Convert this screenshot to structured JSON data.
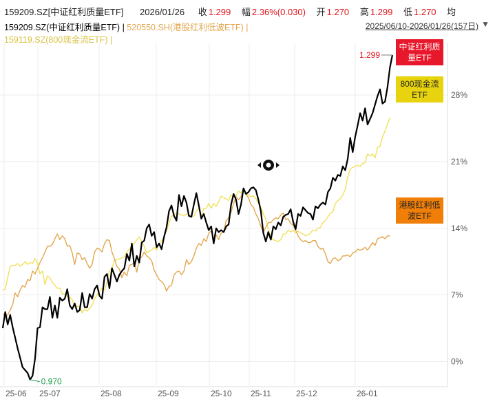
{
  "header": {
    "code_name": "159209.SZ[中证红利质量ETF]",
    "date": "2026/01/26",
    "close_label": "收",
    "close": "1.299",
    "change_label": "幅",
    "change": "2.36%(0.030)",
    "open_label": "开",
    "open": "1.270",
    "high_label": "高",
    "high": "1.299",
    "low_label": "低",
    "low": "1.270",
    "avg_label": "均",
    "series_1_label": "159209.SZ(中证红利质量ETF) |",
    "series_2_label": "520550.SH(港股红利低波ETF) |",
    "series_3_label": "159119.SZ(800现金流ETF) |",
    "range": "2025/06/10-2026/01/26(157日)",
    "range_icon": "chevron-down-icon"
  },
  "colors": {
    "series_1": "#000000",
    "series_2": "#e3a64e",
    "series_3": "#f2e05a",
    "tag_series_1": "#e8182c",
    "tag_series_2": "#f07f0a",
    "tag_series_3": "#e8d40e",
    "axis_text": "#555555",
    "grid": "#ececec"
  },
  "chart_data": {
    "type": "line",
    "x_ticks": [
      "25-06",
      "25-07",
      "25-08",
      "25-09",
      "25-10",
      "25-11",
      "25-12",
      "26-01"
    ],
    "ylabel_ticks": [
      "0%",
      "7%",
      "14%",
      "21%",
      "28%"
    ],
    "ylim": [
      -2.5,
      33.5
    ],
    "y_axis_position": "right",
    "grid": true,
    "min_label": "0.970",
    "max_label": "1.299",
    "series": [
      {
        "name": "中证红利质量ETF",
        "values": [
          3.5,
          5.2,
          3.9,
          4.9,
          3.6,
          2.5,
          1.4,
          0.4,
          -0.6,
          -0.9,
          -1.2,
          -1.9,
          -1.5,
          0.3,
          3.5,
          3.6,
          5.7,
          5.5,
          5.5,
          6.8,
          4.6,
          5.9,
          4.6,
          6.7,
          6.4,
          6.6,
          7.6,
          5.9,
          5.5,
          6.1,
          5.2,
          5.4,
          7.2,
          5.7,
          5.7,
          7.1,
          6.6,
          7.6,
          8.0,
          6.9,
          6.6,
          8.9,
          9.2,
          7.7,
          9.8,
          9.1,
          8.4,
          9.1,
          9.5,
          9.8,
          11.3,
          10.6,
          12.4,
          10.0,
          11.1,
          10.4,
          12.5,
          12.7,
          14.0,
          14.4,
          13.2,
          13.6,
          12.0,
          12.4,
          11.8,
          13.1,
          14.1,
          15.8,
          16.4,
          15.3,
          14.8,
          17.5,
          16.3,
          17.4,
          16.7,
          15.3,
          15.2,
          16.5,
          17.7,
          16.4,
          15.0,
          15.5,
          14.6,
          13.8,
          14.2,
          12.4,
          14.0,
          13.6,
          13.8,
          13.6,
          14.2,
          14.4,
          16.5,
          17.6,
          17.0,
          15.5,
          16.5,
          18.2,
          17.6,
          17.8,
          18.2,
          18.3,
          18.0,
          17.0,
          15.8,
          13.5,
          12.6,
          13.6,
          12.8,
          14.2,
          13.9,
          14.6,
          14.3,
          15.2,
          15.4,
          15.5,
          16.0,
          14.7,
          13.9,
          15.5,
          15.3,
          16.2,
          15.9,
          15.6,
          15.5,
          14.9,
          16.3,
          16.1,
          16.5,
          16.7,
          16.5,
          17.8,
          18.2,
          19.3,
          19.0,
          19.6,
          19.5,
          20.5,
          20.1,
          21.3,
          23.5,
          22.0,
          23.6,
          24.8,
          26.1,
          25.3,
          26.6,
          24.9,
          25.5,
          26.1,
          27.0,
          27.9,
          28.6,
          27.1,
          27.3,
          28.8,
          30.9,
          32.2
        ]
      },
      {
        "name": "港股红利低波ETF",
        "values": [
          5.0,
          4.8,
          4.9,
          5.4,
          6.0,
          7.2,
          6.8,
          7.5,
          8.0,
          7.8,
          8.6,
          8.5,
          9.5,
          9.2,
          9.8,
          10.4,
          10.9,
          11.5,
          12.1,
          12.1,
          12.3,
          12.9,
          13.4,
          12.8,
          13.2,
          12.9,
          12.1,
          12.2,
          11.4,
          10.2,
          11.4,
          11.3,
          10.7,
          10.9,
          10.3,
          9.8,
          10.2,
          11.5,
          11.9,
          11.8,
          11.5,
          12.4,
          12.8,
          12.7,
          11.5,
          10.8,
          10.0,
          9.7,
          8.8,
          9.4,
          9.0,
          10.1,
          10.2,
          10.4,
          9.4,
          10.8,
          11.0,
          11.5,
          11.1,
          10.9,
          10.6,
          9.6,
          9.1,
          8.6,
          8.4,
          8.1,
          7.4,
          7.9,
          8.0,
          9.1,
          9.4,
          9.5,
          9.1,
          9.5,
          10.7,
          10.2,
          10.5,
          11.1,
          11.9,
          12.4,
          12.2,
          12.9,
          12.6,
          13.5,
          13.7,
          12.9,
          13.3,
          12.8,
          13.5,
          13.6,
          14.8,
          15.1,
          15.7,
          16.6,
          17.3,
          17.0,
          17.3,
          18.0,
          17.6,
          17.2,
          16.5,
          16.2,
          15.5,
          15.0,
          14.2,
          13.6,
          14.1,
          14.6,
          14.6,
          14.9,
          15.1,
          15.0,
          15.4,
          15.6,
          14.9,
          15.0,
          14.5,
          14.3,
          13.8,
          13.2,
          12.8,
          12.6,
          12.7,
          12.5,
          12.5,
          12.7,
          12.7,
          12.1,
          11.8,
          11.9,
          11.3,
          10.5,
          10.3,
          10.8,
          10.9,
          10.6,
          10.7,
          11.1,
          11.1,
          11.2,
          11.0,
          11.4,
          11.5,
          11.8,
          11.7,
          11.8,
          12.0,
          11.7,
          12.1,
          12.5,
          12.2,
          12.9,
          13.0,
          13.1,
          12.9,
          13.2,
          13.2
        ]
      },
      {
        "name": "800现金流ETF",
        "values": [
          7.5,
          7.6,
          8.8,
          10.0,
          10.1,
          10.1,
          10.3,
          10.0,
          10.2,
          10.5,
          10.2,
          10.4,
          10.3,
          10.8,
          10.3,
          9.2,
          9.5,
          8.1,
          9.0,
          8.8,
          8.3,
          8.0,
          7.7,
          7.7,
          7.1,
          7.1,
          6.8,
          6.8,
          6.5,
          5.8,
          5.8,
          5.8,
          5.1,
          5.5,
          5.3,
          5.6,
          5.9,
          6.6,
          7.0,
          7.4,
          7.7,
          7.5,
          8.3,
          9.5,
          9.8,
          10.6,
          10.7,
          10.8,
          10.9,
          11.0,
          11.5,
          11.8,
          12.1,
          12.4,
          12.8,
          13.1,
          12.6,
          12.1,
          11.4,
          11.6,
          11.7,
          12.0,
          11.7,
          12.4,
          12.7,
          13.1,
          13.7,
          14.6,
          15.2,
          15.5,
          15.6,
          15.5,
          15.4,
          15.3,
          15.5,
          15.4,
          15.2,
          15.3,
          15.8,
          16.1,
          15.2,
          16.1,
          16.1,
          16.6,
          16.1,
          16.6,
          16.3,
          16.8,
          17.4,
          17.2,
          17.1,
          16.9,
          17.5,
          17.4,
          17.4,
          17.9,
          17.7,
          18.1,
          17.6,
          17.5,
          17.3,
          17.4,
          17.1,
          16.6,
          16.2,
          15.5,
          15.0,
          13.9,
          13.1,
          12.8,
          12.7,
          12.6,
          12.8,
          13.4,
          13.4,
          13.8,
          13.6,
          13.8,
          13.5,
          13.7,
          13.5,
          13.4,
          13.2,
          13.3,
          13.5,
          13.8,
          13.7,
          14.0,
          14.1,
          14.6,
          14.8,
          15.2,
          15.6,
          15.7,
          16.6,
          16.9,
          17.1,
          17.5,
          18.1,
          19.4,
          20.2,
          20.4,
          20.5,
          20.6,
          20.5,
          20.8,
          20.9,
          21.8,
          21.6,
          21.8,
          21.4,
          22.5,
          22.6,
          23.6,
          24.2,
          24.9,
          25.6
        ]
      }
    ],
    "end_tags": [
      {
        "series": "中证红利质量ETF",
        "line1": "中证红利质",
        "line2": "量ETF"
      },
      {
        "series": "800现金流ETF",
        "line1": "800现金流",
        "line2": "ETF"
      },
      {
        "series": "港股红利低波ETF",
        "line1": "港股红利低",
        "line2": "波ETF"
      }
    ]
  }
}
